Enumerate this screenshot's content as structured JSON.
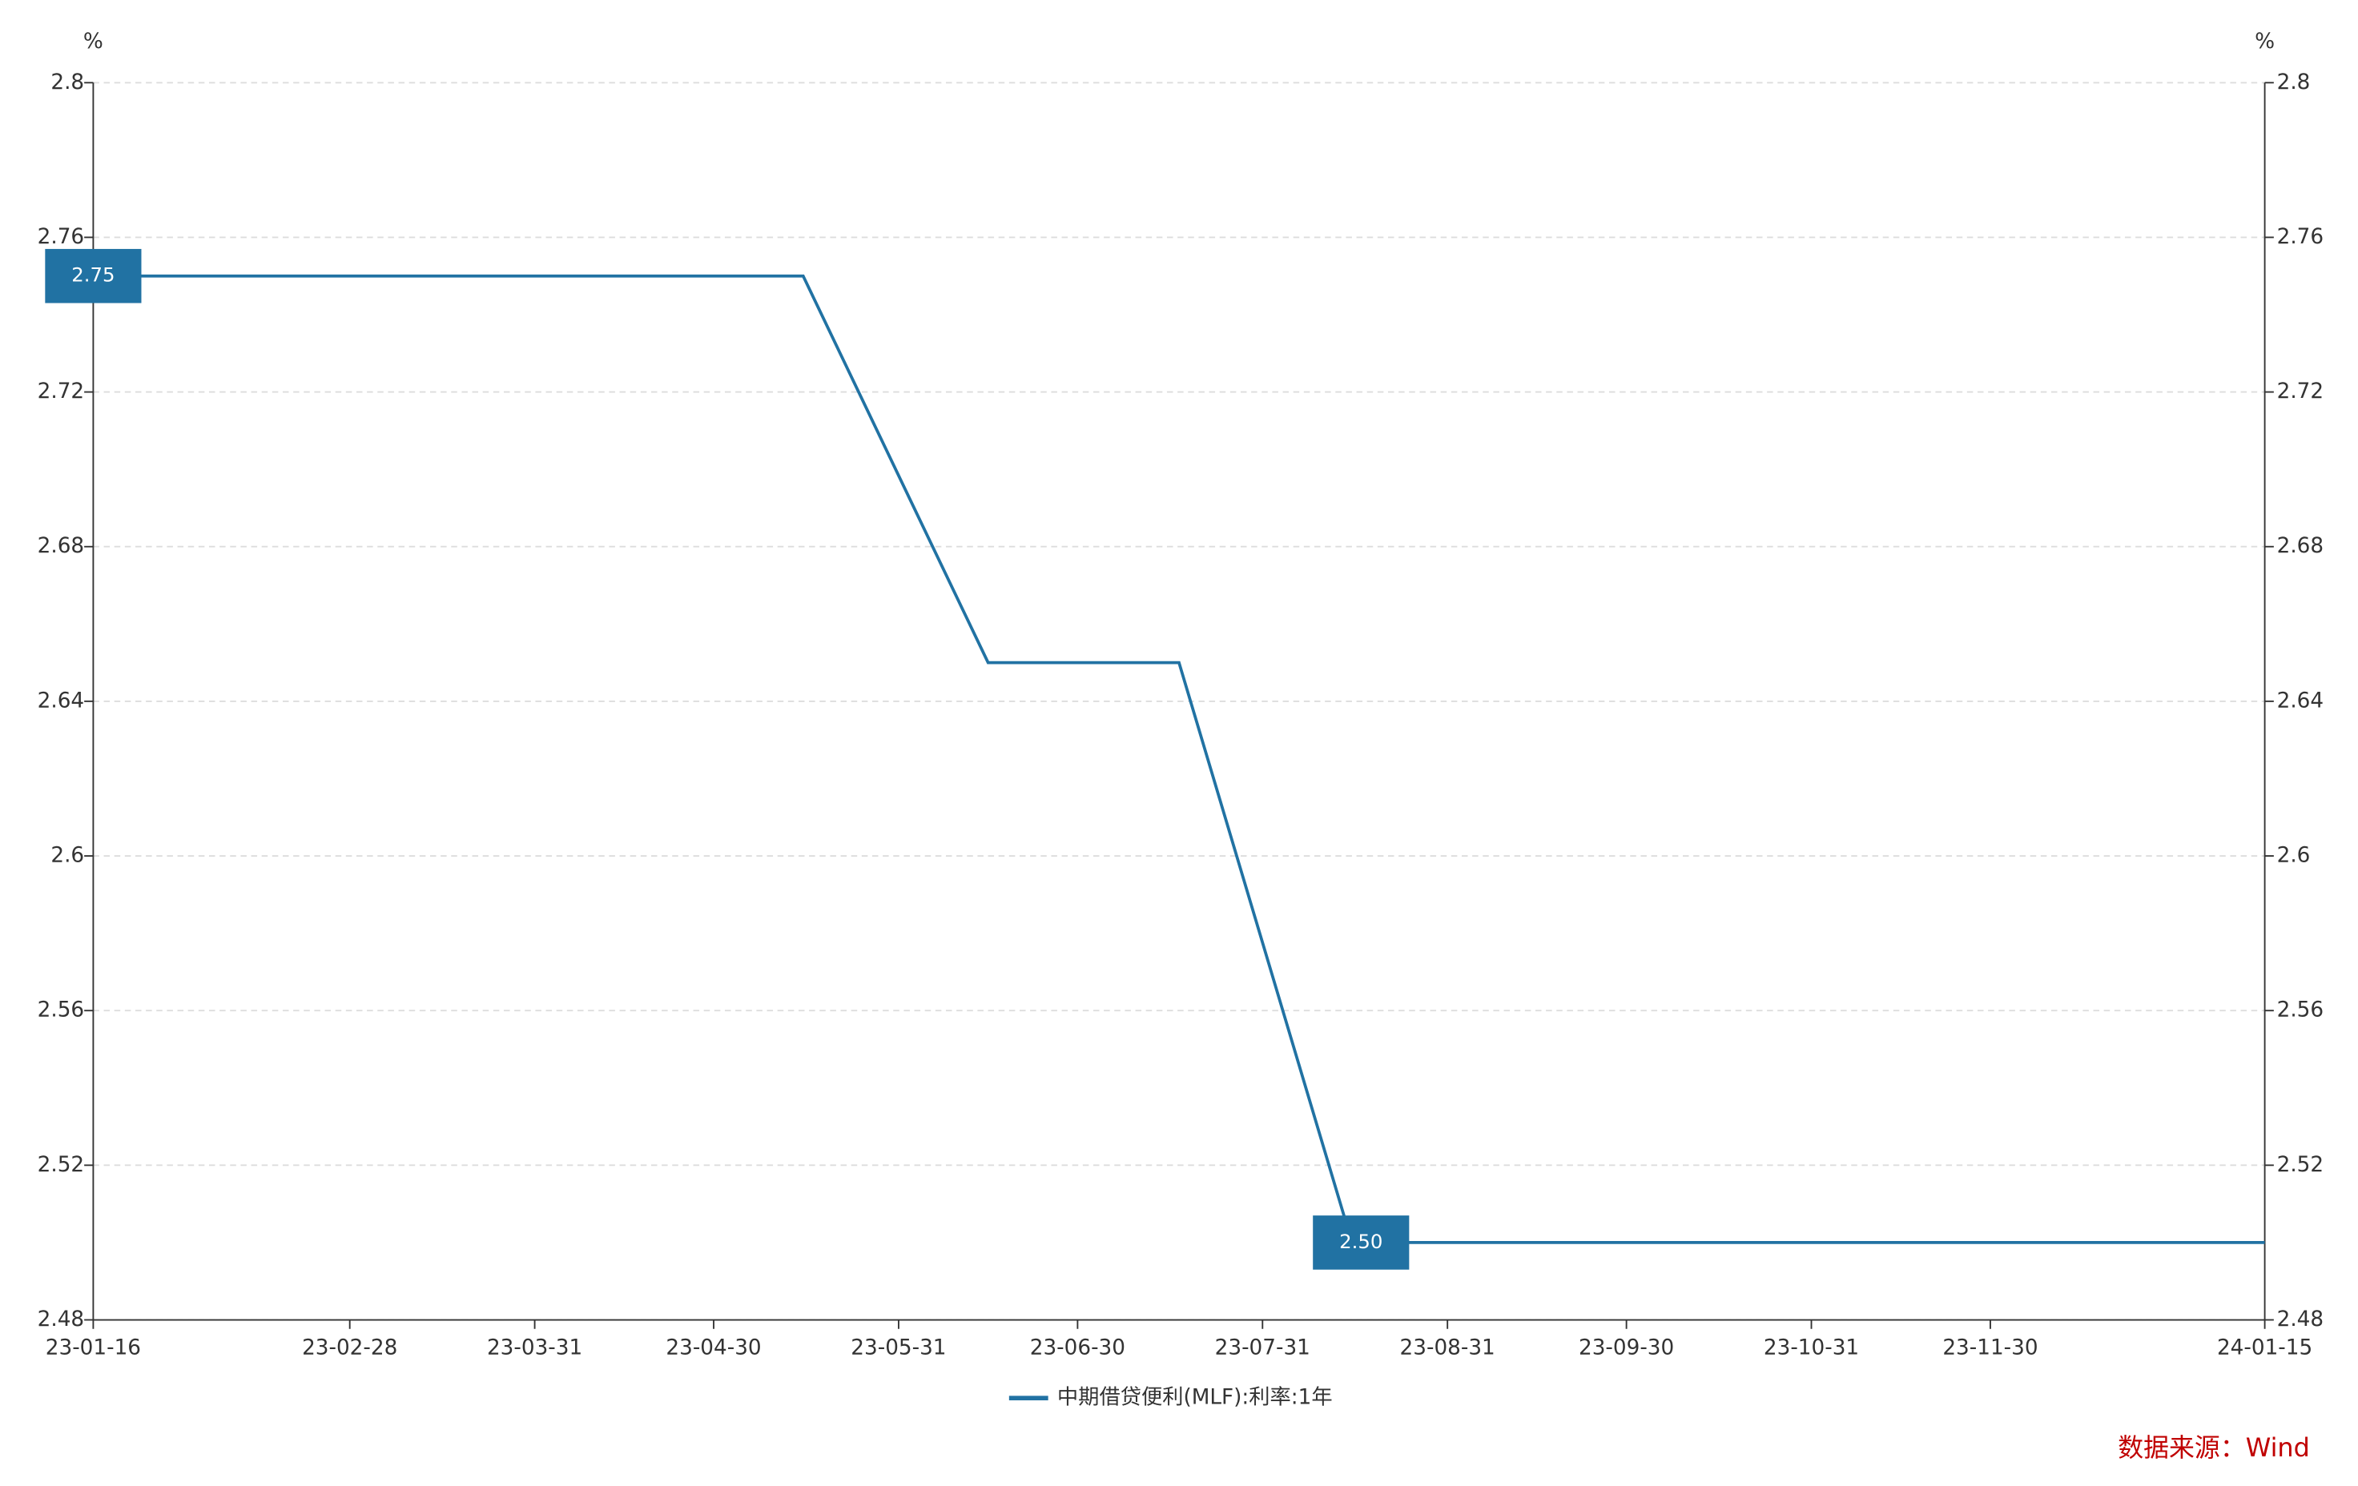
{
  "chart_data": {
    "type": "line",
    "y_unit": "%",
    "y2_unit": "%",
    "x": [
      "23-01-16",
      "23-02-15",
      "23-03-15",
      "23-04-17",
      "23-05-15",
      "23-06-15",
      "23-07-17",
      "23-08-15",
      "23-09-15",
      "23-10-16",
      "23-11-15",
      "23-12-15",
      "24-01-15"
    ],
    "series": [
      {
        "name": "中期借贷便利(MLF):利率:1年",
        "color": "#2172a3",
        "values": [
          2.75,
          2.75,
          2.75,
          2.75,
          2.75,
          2.65,
          2.65,
          2.5,
          2.5,
          2.5,
          2.5,
          2.5,
          2.5
        ],
        "value_labels": [
          "2.75",
          null,
          null,
          null,
          null,
          null,
          null,
          "2.50",
          null,
          null,
          null,
          null,
          null
        ]
      }
    ],
    "xlim": [
      "23-01-16",
      "24-01-15"
    ],
    "xticks": [
      "23-01-16",
      "23-02-28",
      "23-03-31",
      "23-04-30",
      "23-05-31",
      "23-06-30",
      "23-07-31",
      "23-08-31",
      "23-09-30",
      "23-10-31",
      "23-11-30",
      "24-01-15"
    ],
    "ylim": [
      2.48,
      2.8
    ],
    "yticks": [
      2.48,
      2.52,
      2.56,
      2.6,
      2.64,
      2.68,
      2.72,
      2.76,
      2.8
    ],
    "y2lim": [
      2.48,
      2.8
    ],
    "y2ticks": [
      2.48,
      2.52,
      2.56,
      2.6,
      2.64,
      2.68,
      2.72,
      2.76,
      2.8
    ],
    "grid": true,
    "legend": "bottom",
    "source": "数据来源：Wind",
    "source_color": "#c00000"
  }
}
